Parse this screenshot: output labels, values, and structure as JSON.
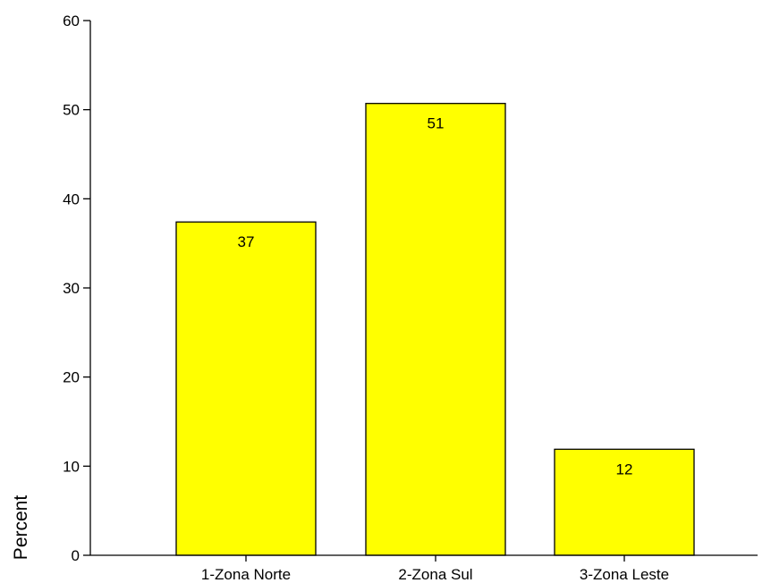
{
  "chart_data": {
    "type": "bar",
    "categories": [
      "1-Zona Norte",
      "2-Zona Sul",
      "3-Zona Leste"
    ],
    "values": [
      37.4,
      50.7,
      11.9
    ],
    "data_labels": [
      "37",
      "51",
      "12"
    ],
    "title": "",
    "xlabel": "",
    "ylabel": "Percent",
    "ylim": [
      0,
      60
    ],
    "yticks": [
      0,
      10,
      20,
      30,
      40,
      50,
      60
    ],
    "ytick_labels": [
      "0",
      "10",
      "20",
      "30",
      "40",
      "50",
      "60"
    ],
    "grid": false,
    "legend": "none",
    "colors": {
      "bar_fill": "#ffff00",
      "bar_stroke": "#000000",
      "axis": "#000000",
      "background": "#ffffff"
    }
  }
}
